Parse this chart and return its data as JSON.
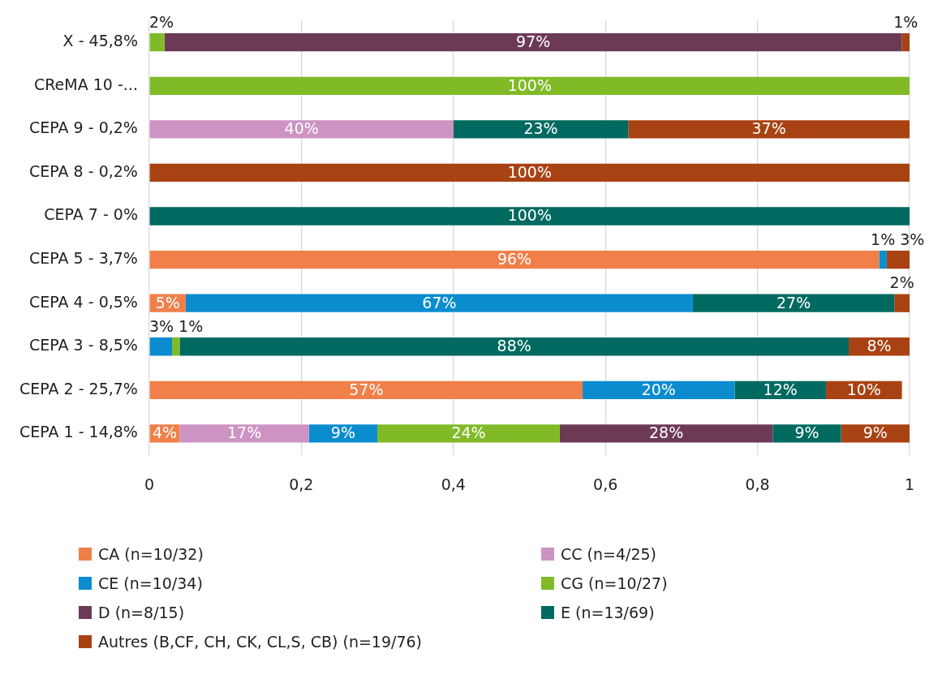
{
  "chart_data": {
    "type": "bar",
    "orientation": "horizontal",
    "stacked": true,
    "grid": "x",
    "legend": "bottom",
    "categories": [
      "X - 45,8%",
      "CReMA 10 -...",
      "CEPA 9 - 0,2%",
      "CEPA 8 - 0,2%",
      "CEPA 7 - 0%",
      "CEPA 5 - 3,7%",
      "CEPA 4 - 0,5%",
      "CEPA 3 - 8,5%",
      "CEPA 2 - 25,7%",
      "CEPA 1 - 14,8%"
    ],
    "xlim": [
      0,
      1
    ],
    "xticks": [
      0,
      {
        "value": 0.2,
        "label": "0,2"
      },
      {
        "value": 0.4,
        "label": "0,4"
      },
      {
        "value": 0.6,
        "label": "0,6"
      },
      {
        "value": 0.8,
        "label": "0,8"
      },
      1
    ],
    "series": [
      {
        "name": "CA (n=10/32)",
        "color": "#f07f4a",
        "values": [
          null,
          null,
          null,
          null,
          null,
          0.96,
          0.048,
          null,
          0.57,
          0.04
        ],
        "value_labels": [
          null,
          null,
          null,
          null,
          null,
          "96%",
          "5%",
          null,
          "57%",
          "4%"
        ]
      },
      {
        "name": "CC (n=4/25)",
        "color": "#cc93c3",
        "values": [
          null,
          null,
          0.4,
          null,
          null,
          null,
          null,
          null,
          null,
          0.17
        ],
        "value_labels": [
          null,
          null,
          "40%",
          null,
          null,
          null,
          null,
          null,
          null,
          "17%"
        ]
      },
      {
        "name": "CE (n=10/34)",
        "color": "#0b8ccf",
        "values": [
          null,
          null,
          null,
          null,
          null,
          0.01,
          0.667,
          0.03,
          0.2,
          0.09
        ],
        "value_labels": [
          null,
          null,
          null,
          null,
          null,
          "1%",
          "67%",
          "3%",
          "20%",
          "9%"
        ]
      },
      {
        "name": "CG (n=10/27)",
        "color": "#80bb27",
        "values": [
          0.02,
          1,
          null,
          null,
          null,
          null,
          null,
          0.01,
          null,
          0.24
        ],
        "value_labels": [
          "2%",
          "100%",
          null,
          null,
          null,
          null,
          null,
          "1%",
          null,
          "24%"
        ]
      },
      {
        "name": "D (n=8/15)",
        "color": "#6d3a56",
        "values": [
          0.97,
          null,
          null,
          null,
          null,
          null,
          null,
          null,
          null,
          0.28
        ],
        "value_labels": [
          "97%",
          null,
          null,
          null,
          null,
          null,
          null,
          null,
          null,
          "28%"
        ]
      },
      {
        "name": "E (n=13/69)",
        "color": "#006a61",
        "values": [
          null,
          null,
          0.23,
          null,
          1,
          null,
          0.265,
          0.88,
          0.12,
          0.09
        ],
        "value_labels": [
          null,
          null,
          "23%",
          null,
          "100%",
          null,
          "27%",
          "88%",
          "12%",
          "9%"
        ]
      },
      {
        "name": "Autres (B,CF, CH, CK, CL,S, CB) (n=19/76)",
        "color": "#a94213",
        "values": [
          0.01,
          null,
          0.37,
          1,
          null,
          0.03,
          0.02,
          0.08,
          0.1,
          0.09
        ],
        "value_labels": [
          "1%",
          null,
          "37%",
          "100%",
          null,
          "3%",
          "2%",
          "8%",
          "10%",
          "9%"
        ]
      }
    ]
  }
}
